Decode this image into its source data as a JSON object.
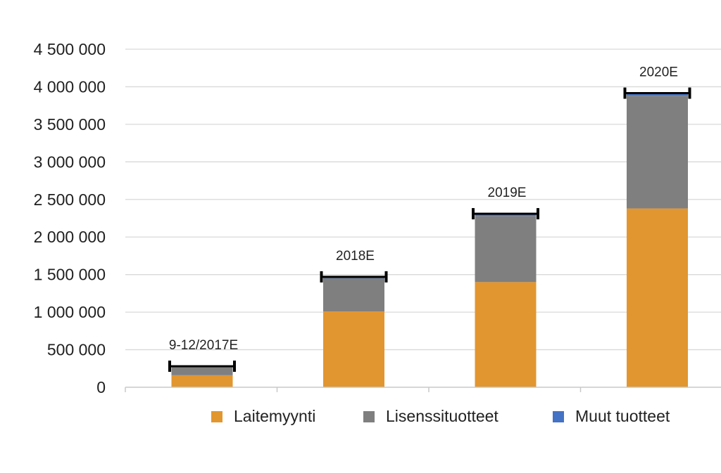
{
  "chart_data": {
    "type": "bar",
    "stacked": true,
    "categories": [
      "9-12/2017E",
      "2018E",
      "2019E",
      "2020E"
    ],
    "series": [
      {
        "name": "Laitemyynti",
        "color": "#E2962F",
        "values": [
          160000,
          1010000,
          1400000,
          2380000
        ]
      },
      {
        "name": "Lisenssituotteet",
        "color": "#7F7F7F",
        "values": [
          105000,
          440000,
          880000,
          1500000
        ]
      },
      {
        "name": "Muut tuotteet",
        "color": "#4472C4",
        "values": [
          15000,
          20000,
          30000,
          35000
        ]
      }
    ],
    "yticks": [
      "0",
      "500 000",
      "1 000 000",
      "1 500 000",
      "2 000 000",
      "2 500 000",
      "3 000 000",
      "3 500 000",
      "4 000 000",
      "4 500 000"
    ],
    "ylim": [
      0,
      4500000
    ],
    "ytick_step": 500000,
    "grid": true,
    "error_bar_color": "#000000",
    "legend_position": "bottom"
  }
}
